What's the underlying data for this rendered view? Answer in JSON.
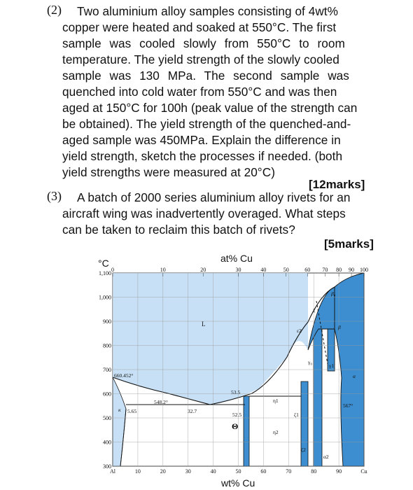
{
  "q2": {
    "number": "(2)",
    "lines": [
      "Two aluminium alloy samples consisting of 4wt%",
      "copper were heated and soaked at 550°C. The first",
      "sample was cooled slowly from 550°C to room",
      "temperature. The yield strength of the slowly cooled",
      "sample was 130 MPa. The second sample was",
      "quenched into cold water from 550°C and was then",
      "aged at 150°C for 100h (peak value of the strength can",
      "be obtained). The yield strength of the quenched-and-",
      "aged sample was 450MPa. Explain the difference in",
      "yield strength, sketch the processes if needed. (both",
      "yield strengths were measured at 20°C)"
    ],
    "marks": "[12marks]"
  },
  "q3": {
    "number": "(3)",
    "lines": [
      "A batch of 2000 series aluminium alloy rivets for an",
      "aircraft wing was inadvertently overaged. What steps",
      "can be taken to reclaim this batch of rivets?"
    ],
    "marks": "[5marks]"
  },
  "diagram": {
    "top_axis_title": "at% Cu",
    "bottom_axis_title": "wt% Cu",
    "temp_unit": "°C",
    "top_ticks": [
      "0",
      "10",
      "20",
      "30",
      "40",
      "50",
      "60",
      "70",
      "80",
      "90",
      "100"
    ],
    "bottom_ticks": [
      "Al",
      "10",
      "20",
      "30",
      "40",
      "50",
      "60",
      "70",
      "80",
      "90",
      "Cu"
    ],
    "temp_ticks": [
      "1,100",
      "1,000",
      "900",
      "800",
      "700",
      "600",
      "500",
      "400",
      "300"
    ],
    "annotations": {
      "al_melt": "660.452°",
      "eutectic_temp": "548.2°",
      "solubility": "5.65",
      "eutectic_comp": "32.7",
      "l_label": "L",
      "comp_535": "53.5",
      "comp_525": "52.5",
      "theta": "Θ",
      "temp_567": "567°",
      "kappa": "κ",
      "alpha": "α",
      "beta": "β",
      "beta0": "β₀",
      "eta1": "η1",
      "eta2": "η2",
      "gamma1": "γ1",
      "epsilon2": "ε2",
      "zeta1": "ζ1",
      "zeta2": "ζ2",
      "alpha2": "α2",
      "chi": "χ",
      "gamma0": "γ₀"
    },
    "colors": {
      "liquid": "#c7e0f5",
      "solid_phase": "#3d8ed0",
      "line": "#111111"
    }
  }
}
